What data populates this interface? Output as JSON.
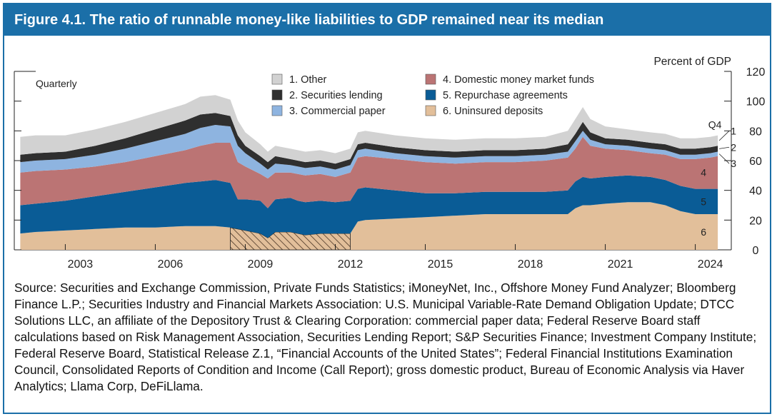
{
  "figure": {
    "title": "Figure 4.1. The ratio of runnable money-like liabilities to GDP remained near its median",
    "source": "Source: Securities and Exchange Commission, Private Funds Statistics; iMoneyNet, Inc., Offshore Money Fund Analyzer; Bloomberg Finance L.P.; Securities Industry and Financial Markets Association: U.S. Municipal Variable-Rate Demand Obligation Update; DTCC Solutions LLC, an affiliate of the Depository Trust & Clearing Corporation: commercial paper data; Federal Reserve Board staff calculations based on Risk Management Association, Securities Lending Report; S&P Securities Finance; Investment Company Institute; Federal Reserve Board, Statistical Release Z.1, “Financial Accounts of the United States”; Federal Financial Institutions Examination Council, Consolidated Reports of Condition and Income (Call Report); gross domestic product, Bureau of Economic Analysis via Haver Analytics; Llama Corp, DeFiLlama."
  },
  "chart_data": {
    "type": "area",
    "stacked": true,
    "frequency_label": "Quarterly",
    "ylabel": "Percent of GDP",
    "ylim": [
      0,
      120
    ],
    "yticks": [
      "0",
      "20",
      "40",
      "60",
      "80",
      "100",
      "120"
    ],
    "xlim": [
      2001.3,
      2025.2
    ],
    "xticks": [
      "2003",
      "2006",
      "2009",
      "2012",
      "2015",
      "2018",
      "2021",
      "2024"
    ],
    "last_period_label": "Q4",
    "x": [
      2001.5,
      2002.0,
      2003.0,
      2004.0,
      2005.0,
      2006.0,
      2007.0,
      2007.5,
      2008.0,
      2008.5,
      2008.75,
      2009.0,
      2009.5,
      2009.75,
      2010.0,
      2010.5,
      2010.75,
      2011.0,
      2011.5,
      2012.0,
      2012.5,
      2012.75,
      2013.0,
      2014.0,
      2015.0,
      2016.0,
      2017.0,
      2018.0,
      2019.0,
      2019.75,
      2020.0,
      2020.25,
      2020.5,
      2021.0,
      2021.75,
      2022.5,
      2023.0,
      2023.5,
      2024.0,
      2024.5,
      2024.75
    ],
    "series": [
      {
        "name": "6. Uninsured deposits",
        "key": "6",
        "color": "#e2bf9a",
        "hatched_range": [
          2008.5,
          2012.5
        ],
        "values": [
          11,
          12,
          13,
          14,
          15,
          15,
          16,
          16,
          16,
          15,
          14,
          13,
          11,
          8,
          12,
          12,
          11,
          10,
          11,
          11,
          11,
          19,
          20,
          21,
          22,
          23,
          24,
          24,
          24,
          24,
          28,
          30,
          30,
          31,
          32,
          32,
          30,
          26,
          24,
          24,
          24
        ]
      },
      {
        "name": "5. Repurchase agreements",
        "key": "5",
        "color": "#0a5c96",
        "values": [
          19,
          19,
          20,
          22,
          24,
          27,
          29,
          30,
          31,
          30,
          20,
          21,
          22,
          20,
          22,
          23,
          22,
          22,
          22,
          21,
          22,
          22,
          22,
          19,
          16,
          15,
          15,
          15,
          15,
          16,
          18,
          19,
          18,
          18,
          18,
          17,
          17,
          17,
          17,
          17,
          17
        ]
      },
      {
        "name": "4. Domestic money market funds",
        "key": "4",
        "color": "#bb7474",
        "values": [
          22,
          22,
          21,
          20,
          20,
          21,
          22,
          24,
          25,
          27,
          25,
          22,
          18,
          20,
          18,
          17,
          18,
          18,
          18,
          17,
          19,
          21,
          21,
          21,
          21,
          20,
          20,
          20,
          21,
          22,
          22,
          27,
          22,
          19,
          17,
          16,
          17,
          18,
          20,
          21,
          22
        ]
      },
      {
        "name": "3. Commercial paper",
        "key": "3",
        "color": "#8eb4e0",
        "values": [
          7,
          7,
          7,
          8,
          9,
          10,
          11,
          12,
          12,
          11,
          11,
          9,
          7,
          6,
          6,
          5,
          5,
          5,
          5,
          5,
          5,
          5,
          5,
          4,
          4,
          4,
          4,
          4,
          4,
          4,
          5,
          4,
          4,
          3,
          3,
          3,
          3,
          3,
          3,
          3,
          3
        ]
      },
      {
        "name": "2. Securities lending",
        "key": "2",
        "color": "#2f2f2f",
        "values": [
          5,
          5,
          5,
          6,
          7,
          8,
          9,
          9,
          8,
          7,
          7,
          5,
          5,
          5,
          5,
          4,
          4,
          4,
          4,
          4,
          4,
          4,
          4,
          4,
          4,
          4,
          4,
          4,
          4,
          5,
          5,
          6,
          5,
          4,
          4,
          4,
          4,
          4,
          4,
          4,
          4
        ]
      },
      {
        "name": "1. Other",
        "key": "1",
        "color": "#d2d2d2",
        "values": [
          12,
          12,
          11,
          11,
          11,
          11,
          11,
          12,
          12,
          11,
          10,
          9,
          8,
          7,
          7,
          7,
          7,
          7,
          7,
          7,
          7,
          8,
          8,
          8,
          8,
          8,
          8,
          8,
          8,
          9,
          10,
          10,
          9,
          8,
          7,
          7,
          7,
          7,
          7,
          7,
          7
        ]
      }
    ],
    "legend": [
      {
        "label": "1. Other",
        "color": "#d2d2d2"
      },
      {
        "label": "2. Securities lending",
        "color": "#2f2f2f"
      },
      {
        "label": "3. Commercial paper",
        "color": "#8eb4e0"
      },
      {
        "label": "4. Domestic money market funds",
        "color": "#bb7474"
      },
      {
        "label": "5. Repurchase agreements",
        "color": "#0a5c96"
      },
      {
        "label": "6. Uninsured deposits",
        "color": "#e2bf9a"
      }
    ],
    "hatch_color": "#4a3524"
  }
}
